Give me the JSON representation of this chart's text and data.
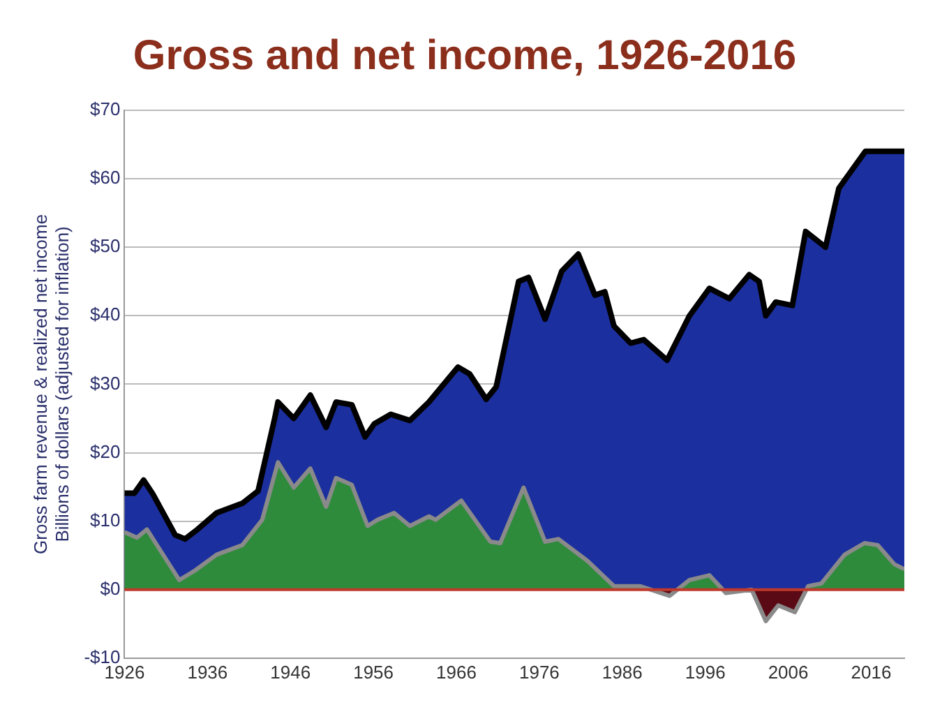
{
  "chart_data": {
    "type": "area",
    "title": "Gross and net income, 1926-2016",
    "ylabel": "Gross farm revenue & realized net income\nBillions of dollars (adjusted for inflation)",
    "series": [
      {
        "color": "#1b2f9e",
        "x": [
          1926,
          1927.2,
          1928.3,
          1929.4,
          1932.1,
          1933.3,
          1934.8,
          1937.1,
          1940.2,
          1942.1,
          1944.1,
          1944.5,
          1946.4,
          1948.4,
          1950.3,
          1951.5,
          1953.4,
          1955,
          1956.1,
          1958.1,
          1960.4,
          1962.7,
          1966.2,
          1967.6,
          1969.6,
          1970.8,
          1973.5,
          1974.7,
          1976.7,
          1978.7,
          1980.7,
          1982.7,
          1983.9,
          1985,
          1987,
          1988.6,
          1991.4,
          1994.1,
          1996.5,
          1998.9,
          2001.3,
          2002.5,
          2003.3,
          2004.5,
          2006.5,
          2008.1,
          2010.5,
          2012.1,
          2015.3,
          2017.7,
          2020
        ],
        "values": [
          14.1,
          14.1,
          16,
          14,
          8,
          7.4,
          8.8,
          11.2,
          12.6,
          14.4,
          25,
          27.4,
          25,
          28.4,
          23.7,
          27.4,
          27,
          22.3,
          24.2,
          25.6,
          24.7,
          27.4,
          32.5,
          31.5,
          27.8,
          29.6,
          45,
          45.6,
          39.5,
          46.5,
          49,
          43,
          43.5,
          38.5,
          36,
          36.5,
          33.5,
          40,
          44,
          42.5,
          46,
          45,
          40,
          42,
          41.5,
          52.3,
          50,
          58.6,
          64,
          64,
          64
        ]
      },
      {
        "color": "#2e8b3c",
        "x": [
          1926,
          1927.5,
          1928.7,
          1932.6,
          1934.5,
          1937.1,
          1940.2,
          1942.6,
          1944.5,
          1946.4,
          1948.4,
          1950.3,
          1951.5,
          1953.4,
          1955.3,
          1956.5,
          1958.5,
          1960.4,
          1962.7,
          1963.5,
          1966.6,
          1970.1,
          1971.3,
          1974.1,
          1976.7,
          1978.3,
          1981.8,
          1985,
          1988.2,
          1991.7,
          1994.1,
          1996.5,
          1998.5,
          2001.6,
          2003.3,
          2004.8,
          2006.8,
          2008.4,
          2010,
          2012.8,
          2015.2,
          2016.8,
          2018.8,
          2020
        ],
        "values": [
          8.4,
          7.6,
          8.8,
          1.4,
          2.8,
          5.1,
          6.5,
          10.2,
          18.6,
          14.9,
          17.7,
          12.1,
          16.3,
          15.3,
          9.3,
          10.2,
          11.2,
          9.3,
          10.7,
          10.2,
          13,
          7,
          6.8,
          14.9,
          7,
          7.4,
          4.2,
          0.5,
          0.5,
          -0.9,
          1.4,
          2.1,
          -0.5,
          0,
          -4.6,
          -2.3,
          -3.3,
          0.5,
          0.9,
          5.1,
          6.8,
          6.5,
          3.7,
          3
        ]
      }
    ],
    "xlim": [
      1926,
      2020
    ],
    "xticks": [
      1926,
      1936,
      1946,
      1956,
      1966,
      1976,
      1986,
      1996,
      2006,
      2016
    ],
    "ylim": [
      -10,
      70
    ],
    "yticks": [
      {
        "value": -10,
        "label": "-$10"
      },
      {
        "value": 0,
        "label": "$0"
      },
      {
        "value": 10,
        "label": "$10"
      },
      {
        "value": 20,
        "label": "$20"
      },
      {
        "value": 30,
        "label": "$30"
      },
      {
        "value": 40,
        "label": "$40"
      },
      {
        "value": 50,
        "label": "$50"
      },
      {
        "value": 60,
        "label": "$60"
      },
      {
        "value": 70,
        "label": "$70"
      }
    ],
    "grid": "y",
    "ref_lines": [
      {
        "axis": "y",
        "value": 0,
        "color": "#c0392b"
      }
    ]
  }
}
